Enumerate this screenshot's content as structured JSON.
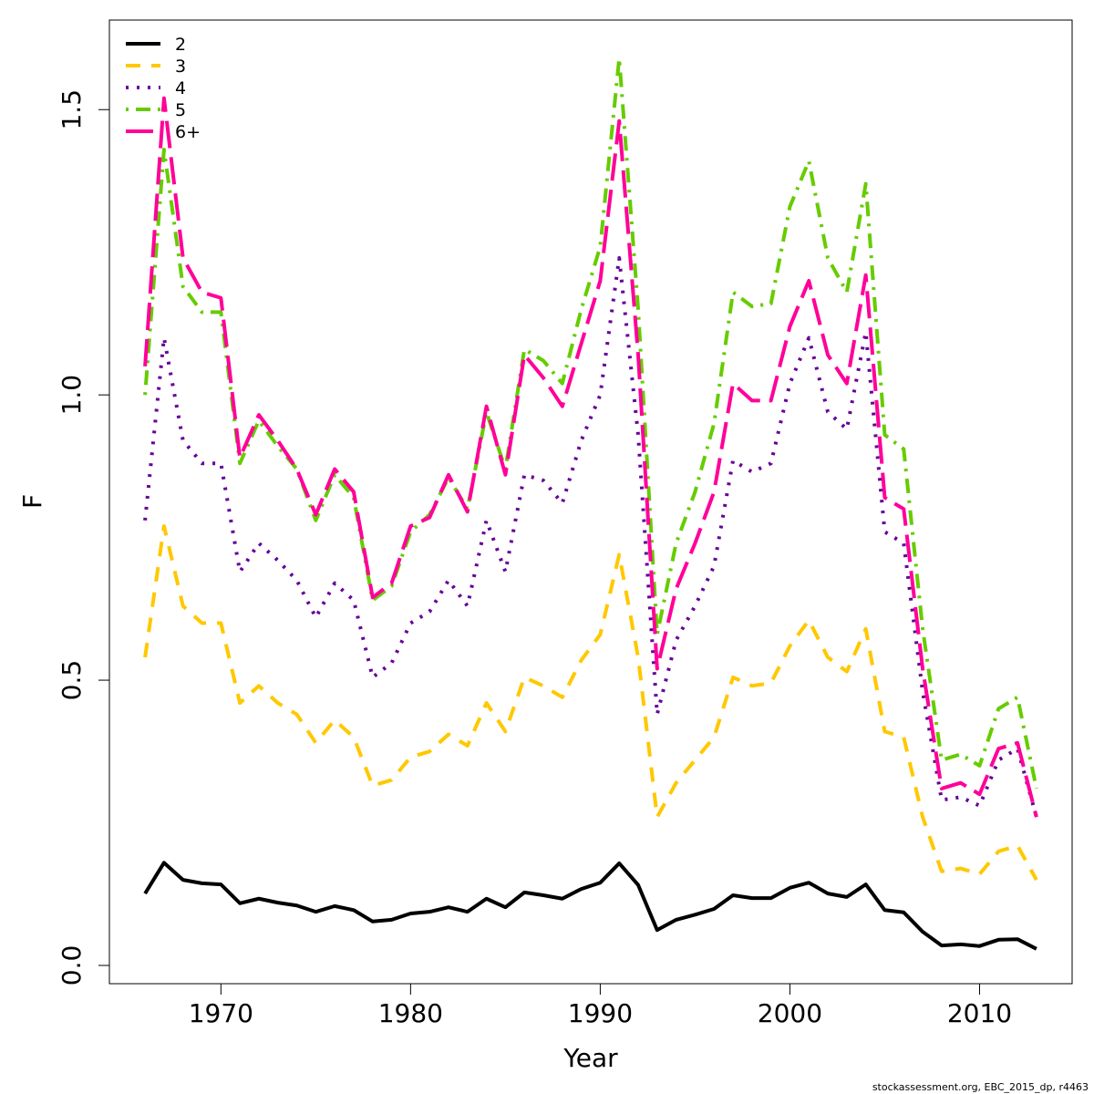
{
  "chart_data": {
    "type": "line",
    "xlabel": "Year",
    "ylabel": "F",
    "footnote": "stockassessment.org, EBC_2015_dp, r4463",
    "x": [
      1966,
      1967,
      1968,
      1969,
      1970,
      1971,
      1972,
      1973,
      1974,
      1975,
      1976,
      1977,
      1978,
      1979,
      1980,
      1981,
      1982,
      1983,
      1984,
      1985,
      1986,
      1987,
      1988,
      1989,
      1990,
      1991,
      1992,
      1993,
      1994,
      1995,
      1996,
      1997,
      1998,
      1999,
      2000,
      2001,
      2002,
      2003,
      2004,
      2005,
      2006,
      2007,
      2008,
      2009,
      2010,
      2011,
      2012,
      2013
    ],
    "series": [
      {
        "name": "2",
        "color": "#000000",
        "dash": "solid",
        "values": [
          0.126,
          0.18,
          0.15,
          0.144,
          0.142,
          0.109,
          0.117,
          0.11,
          0.105,
          0.094,
          0.104,
          0.097,
          0.077,
          0.08,
          0.091,
          0.094,
          0.102,
          0.094,
          0.117,
          0.102,
          0.128,
          0.123,
          0.117,
          0.134,
          0.145,
          0.179,
          0.141,
          0.062,
          0.08,
          0.089,
          0.099,
          0.123,
          0.118,
          0.118,
          0.136,
          0.145,
          0.126,
          0.12,
          0.142,
          0.097,
          0.093,
          0.059,
          0.035,
          0.037,
          0.034,
          0.045,
          0.046,
          0.029
        ]
      },
      {
        "name": "3",
        "color": "#ffc800",
        "dash": "dashed",
        "values": [
          0.54,
          0.77,
          0.63,
          0.6,
          0.6,
          0.46,
          0.49,
          0.46,
          0.44,
          0.39,
          0.43,
          0.4,
          0.315,
          0.325,
          0.365,
          0.375,
          0.405,
          0.385,
          0.46,
          0.41,
          0.505,
          0.49,
          0.47,
          0.535,
          0.58,
          0.72,
          0.54,
          0.26,
          0.32,
          0.36,
          0.4,
          0.505,
          0.49,
          0.495,
          0.56,
          0.605,
          0.54,
          0.515,
          0.59,
          0.41,
          0.4,
          0.26,
          0.165,
          0.17,
          0.16,
          0.2,
          0.21,
          0.15
        ]
      },
      {
        "name": "4",
        "color": "#660099",
        "dash": "dotted",
        "values": [
          0.78,
          1.1,
          0.92,
          0.88,
          0.88,
          0.69,
          0.74,
          0.71,
          0.675,
          0.61,
          0.67,
          0.64,
          0.505,
          0.53,
          0.6,
          0.62,
          0.675,
          0.63,
          0.78,
          0.69,
          0.86,
          0.85,
          0.81,
          0.92,
          1.0,
          1.24,
          0.93,
          0.44,
          0.57,
          0.63,
          0.7,
          0.885,
          0.865,
          0.88,
          1.02,
          1.1,
          0.97,
          0.94,
          1.11,
          0.76,
          0.74,
          0.48,
          0.29,
          0.295,
          0.28,
          0.36,
          0.38,
          0.26
        ]
      },
      {
        "name": "5",
        "color": "#66cc00",
        "dash": "dotdash",
        "values": [
          1.0,
          1.43,
          1.19,
          1.145,
          1.145,
          0.88,
          0.955,
          0.91,
          0.87,
          0.78,
          0.86,
          0.82,
          0.64,
          0.665,
          0.76,
          0.79,
          0.855,
          0.8,
          0.97,
          0.87,
          1.08,
          1.06,
          1.02,
          1.15,
          1.26,
          1.59,
          1.15,
          0.58,
          0.74,
          0.83,
          0.95,
          1.18,
          1.155,
          1.16,
          1.33,
          1.41,
          1.24,
          1.18,
          1.37,
          0.93,
          0.905,
          0.59,
          0.36,
          0.37,
          0.35,
          0.45,
          0.47,
          0.31
        ]
      },
      {
        "name": "6+",
        "color": "#ff0099",
        "dash": "longdash",
        "values": [
          1.05,
          1.52,
          1.24,
          1.18,
          1.17,
          0.89,
          0.965,
          0.92,
          0.87,
          0.79,
          0.87,
          0.83,
          0.645,
          0.67,
          0.77,
          0.785,
          0.86,
          0.795,
          0.98,
          0.86,
          1.07,
          1.03,
          0.98,
          1.09,
          1.2,
          1.48,
          1.07,
          0.52,
          0.66,
          0.74,
          0.83,
          1.02,
          0.99,
          0.99,
          1.12,
          1.2,
          1.07,
          1.02,
          1.21,
          0.82,
          0.8,
          0.52,
          0.31,
          0.32,
          0.3,
          0.38,
          0.39,
          0.26
        ]
      }
    ],
    "xlim": [
      1964.12,
      2014.88
    ],
    "ylim": [
      -0.032,
      1.657
    ],
    "xticks": [
      1970,
      1980,
      1990,
      2000,
      2010
    ],
    "yticks": [
      {
        "value": 0,
        "label": "0.0"
      },
      0.5,
      {
        "value": 1,
        "label": "1.0"
      },
      1.5
    ],
    "legend": "top-left",
    "grid": false
  }
}
